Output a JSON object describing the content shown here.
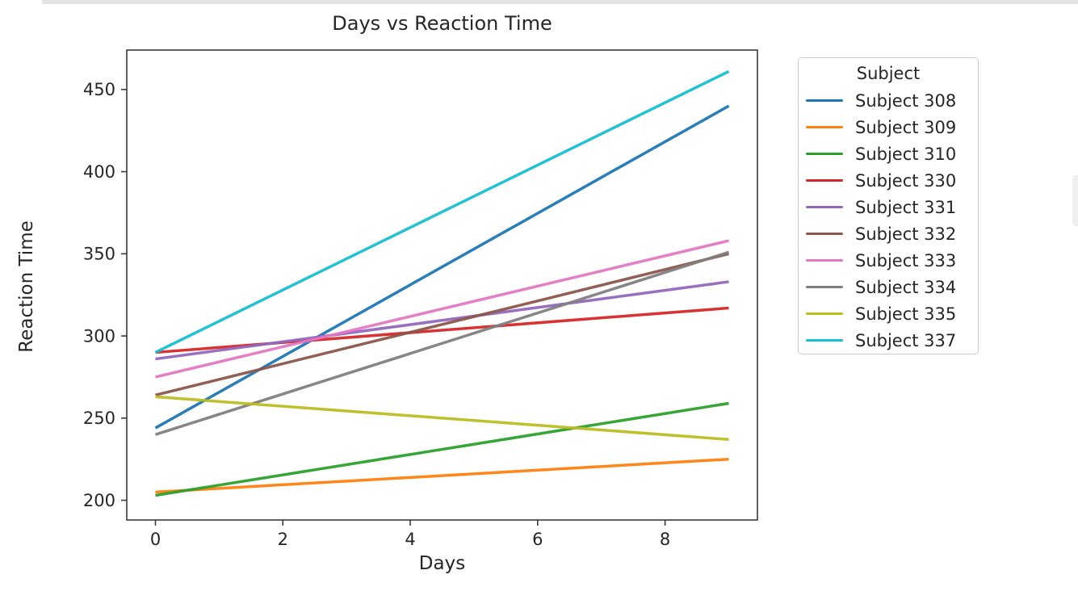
{
  "page": {
    "top_strip_color": "#e3e3e3",
    "scrollbar_color": "#f0f0f0",
    "background": "#ffffff",
    "axis_color": "#3a3a3a",
    "text_color": "#262626"
  },
  "chart_data": {
    "type": "line",
    "title": "Days vs Reaction Time",
    "xlabel": "Days",
    "ylabel": "Reaction Time",
    "x": [
      0,
      9
    ],
    "xticks": [
      0,
      2,
      4,
      6,
      8
    ],
    "yticks": [
      200,
      250,
      300,
      350,
      400,
      450
    ],
    "xlim": [
      -0.45,
      9.45
    ],
    "ylim": [
      188,
      474
    ],
    "grid": false,
    "legend": {
      "title": "Subject",
      "position": "outside-upper-right"
    },
    "series": [
      {
        "name": "Subject 308",
        "color": "#1f77b4",
        "values": [
          244,
          440
        ]
      },
      {
        "name": "Subject 309",
        "color": "#ff7f0e",
        "values": [
          205,
          225
        ]
      },
      {
        "name": "Subject 310",
        "color": "#2ca02c",
        "values": [
          203,
          259
        ]
      },
      {
        "name": "Subject 330",
        "color": "#d62728",
        "values": [
          290,
          317
        ]
      },
      {
        "name": "Subject 331",
        "color": "#9467bd",
        "values": [
          286,
          333
        ]
      },
      {
        "name": "Subject 332",
        "color": "#8c564b",
        "values": [
          264,
          350
        ]
      },
      {
        "name": "Subject 333",
        "color": "#e377c2",
        "values": [
          275,
          358
        ]
      },
      {
        "name": "Subject 334",
        "color": "#7f7f7f",
        "values": [
          240,
          351
        ]
      },
      {
        "name": "Subject 335",
        "color": "#bcbd22",
        "values": [
          263,
          237
        ]
      },
      {
        "name": "Subject 337",
        "color": "#17becf",
        "values": [
          290,
          461
        ]
      }
    ]
  }
}
